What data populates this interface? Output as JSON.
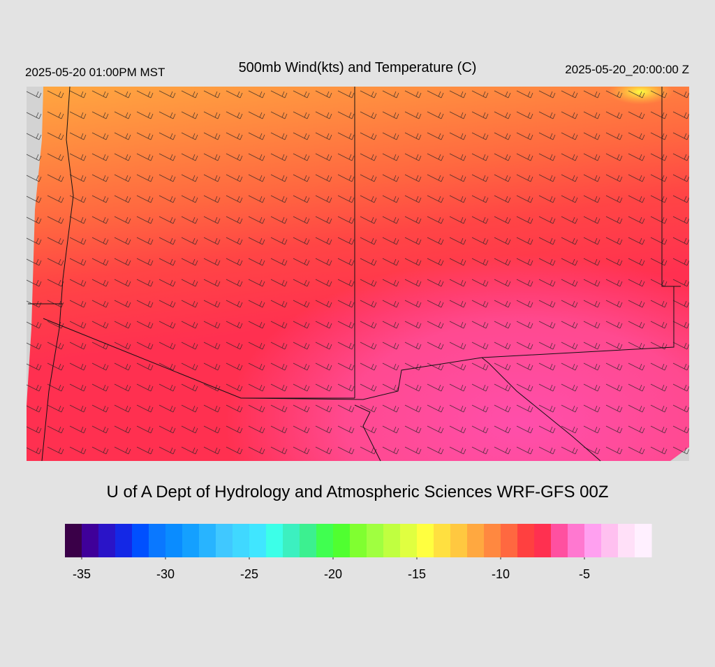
{
  "header": {
    "left": "2025-05-20 01:00PM MST",
    "title": "500mb Wind(kts) and Temperature (C)",
    "right": "2025-05-20_20:00:00 Z"
  },
  "footer": {
    "credit": "U of A Dept of Hydrology and Atmospheric Sciences WRF-GFS 00Z"
  },
  "colorbar": {
    "lim": [
      -36,
      -1
    ],
    "ticks": [
      -35,
      -30,
      -25,
      -20,
      -15,
      -10,
      -5
    ],
    "colors": [
      "#3a0048",
      "#3f0099",
      "#2a14c8",
      "#1428e6",
      "#0050ff",
      "#0a78ff",
      "#0a8cff",
      "#14a0ff",
      "#28b4ff",
      "#40c8ff",
      "#40d8ff",
      "#40e6ff",
      "#3cffe8",
      "#3cf0c0",
      "#3cf090",
      "#40ff50",
      "#50ff30",
      "#80ff30",
      "#a0ff40",
      "#c0ff40",
      "#e0ff40",
      "#ffff40",
      "#ffe040",
      "#ffc840",
      "#ffa840",
      "#ff8840",
      "#ff6840",
      "#ff4040",
      "#ff3050",
      "#ff50a0",
      "#ff78d0",
      "#ffa0f0",
      "#ffc0f0",
      "#ffe0f8",
      "#fff0ff"
    ]
  }
}
